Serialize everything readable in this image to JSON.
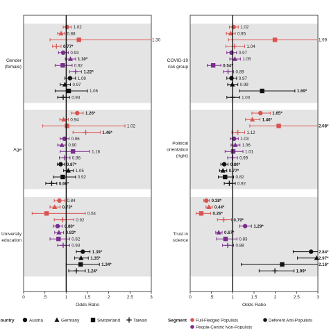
{
  "colors": {
    "full_fledged": "#d9534f",
    "people_centric": "#7b2d8e",
    "deferent": "#111111",
    "band": "#e4e4e4",
    "axis": "#222222"
  },
  "legend": {
    "country_title": "Country",
    "countries": [
      {
        "label": "Austria",
        "marker": "circle"
      },
      {
        "label": "Germany",
        "marker": "triangle"
      },
      {
        "label": "Switzerland",
        "marker": "square"
      },
      {
        "label": "Taiwan",
        "marker": "plus"
      }
    ],
    "segment_title": "Segment",
    "segments": [
      {
        "label": "Full-Fledged Populists",
        "color_key": "full_fledged"
      },
      {
        "label": "People-Centric Non-Populists",
        "color_key": "people_centric"
      },
      {
        "label": "Deferent Anti-Populists",
        "color_key": "deferent"
      }
    ]
  },
  "chart_data": [
    {
      "type": "forest",
      "panel": "left",
      "xlabel": "Odds Ratio",
      "xlim": [
        0,
        3
      ],
      "xticks": [
        0,
        0.5,
        1,
        1.5,
        2,
        2.5,
        3
      ],
      "xtick_labels": [
        "0",
        ".5",
        "1",
        "1.5",
        "2",
        "2.5",
        "3"
      ],
      "reference_line": 1,
      "groups": [
        {
          "label": "Gender\n(female)",
          "rows": [
            {
              "segment": "full_fledged",
              "country": "Austria",
              "or": 1.02,
              "lo": 0.93,
              "hi": 1.12,
              "label": "1.02"
            },
            {
              "segment": "full_fledged",
              "country": "Germany",
              "or": 0.88,
              "lo": 0.8,
              "hi": 0.97,
              "label": "0.88"
            },
            {
              "segment": "full_fledged",
              "country": "Switzerland",
              "or": 1.3,
              "lo": 0.62,
              "hi": 3.0,
              "label": "1.30"
            },
            {
              "segment": "full_fledged",
              "country": "Taiwan",
              "or": 0.77,
              "lo": 0.68,
              "hi": 0.88,
              "label": "0.77*"
            },
            {
              "segment": "people_centric",
              "country": "Austria",
              "or": 0.93,
              "lo": 0.82,
              "hi": 1.05,
              "label": "0.93"
            },
            {
              "segment": "people_centric",
              "country": "Germany",
              "or": 1.1,
              "lo": 0.98,
              "hi": 1.22,
              "label": "1.10*"
            },
            {
              "segment": "people_centric",
              "country": "Switzerland",
              "or": 0.92,
              "lo": 0.74,
              "hi": 1.14,
              "label": "0.92"
            },
            {
              "segment": "people_centric",
              "country": "Taiwan",
              "or": 1.22,
              "lo": 1.08,
              "hi": 1.36,
              "label": "1.22*"
            },
            {
              "segment": "deferent",
              "country": "Austria",
              "or": 1.09,
              "lo": 0.97,
              "hi": 1.22,
              "label": "1.09"
            },
            {
              "segment": "deferent",
              "country": "Germany",
              "or": 0.97,
              "lo": 0.86,
              "hi": 1.1,
              "label": "0.97"
            },
            {
              "segment": "deferent",
              "country": "Switzerland",
              "or": 1.06,
              "lo": 0.74,
              "hi": 1.5,
              "label": "1.06"
            },
            {
              "segment": "deferent",
              "country": "Taiwan",
              "or": 0.93,
              "lo": 0.8,
              "hi": 1.08,
              "label": "0.93"
            }
          ]
        },
        {
          "label": "Age",
          "rows": [
            {
              "segment": "full_fledged",
              "country": "Austria",
              "or": 1.26,
              "lo": 1.12,
              "hi": 1.4,
              "label": "1.26*"
            },
            {
              "segment": "full_fledged",
              "country": "Germany",
              "or": 0.94,
              "lo": 0.85,
              "hi": 1.05,
              "label": "0.94"
            },
            {
              "segment": "full_fledged",
              "country": "Switzerland",
              "or": 1.02,
              "lo": 0.45,
              "hi": 2.38,
              "label": "1.02"
            },
            {
              "segment": "full_fledged",
              "country": "Taiwan",
              "or": 1.46,
              "lo": 1.16,
              "hi": 1.8,
              "label": "1.46*"
            },
            {
              "segment": "people_centric",
              "country": "Austria",
              "or": 0.96,
              "lo": 0.86,
              "hi": 1.07,
              "label": "0.96"
            },
            {
              "segment": "people_centric",
              "country": "Germany",
              "or": 0.9,
              "lo": 0.8,
              "hi": 1.0,
              "label": "0.90"
            },
            {
              "segment": "people_centric",
              "country": "Switzerland",
              "or": 1.16,
              "lo": 0.86,
              "hi": 1.55,
              "label": "1.16"
            },
            {
              "segment": "people_centric",
              "country": "Taiwan",
              "or": 0.96,
              "lo": 0.84,
              "hi": 1.09,
              "label": "0.96"
            },
            {
              "segment": "deferent",
              "country": "Austria",
              "or": 0.87,
              "lo": 0.79,
              "hi": 0.96,
              "label": "0.87*"
            },
            {
              "segment": "deferent",
              "country": "Germany",
              "or": 1.05,
              "lo": 0.94,
              "hi": 1.17,
              "label": "1.05"
            },
            {
              "segment": "deferent",
              "country": "Switzerland",
              "or": 0.92,
              "lo": 0.7,
              "hi": 1.22,
              "label": "0.92"
            },
            {
              "segment": "deferent",
              "country": "Taiwan",
              "or": 0.66,
              "lo": 0.52,
              "hi": 0.78,
              "label": "0.66*"
            }
          ]
        },
        {
          "label": "University\neducation",
          "rows": [
            {
              "segment": "full_fledged",
              "country": "Austria",
              "or": 0.84,
              "lo": 0.72,
              "hi": 0.97,
              "label": "0.84"
            },
            {
              "segment": "full_fledged",
              "country": "Germany",
              "or": 0.73,
              "lo": 0.62,
              "hi": 0.86,
              "label": "0.73*"
            },
            {
              "segment": "full_fledged",
              "country": "Switzerland",
              "or": 0.54,
              "lo": 0.2,
              "hi": 1.45,
              "label": "0.54"
            },
            {
              "segment": "full_fledged",
              "country": "Taiwan",
              "or": 0.92,
              "lo": 0.72,
              "hi": 1.18,
              "label": "0.92"
            },
            {
              "segment": "people_centric",
              "country": "Austria",
              "or": 0.8,
              "lo": 0.7,
              "hi": 0.91,
              "label": "0.80*"
            },
            {
              "segment": "people_centric",
              "country": "Germany",
              "or": 0.83,
              "lo": 0.73,
              "hi": 0.94,
              "label": "0.83*"
            },
            {
              "segment": "people_centric",
              "country": "Switzerland",
              "or": 0.82,
              "lo": 0.62,
              "hi": 1.08,
              "label": "0.82"
            },
            {
              "segment": "people_centric",
              "country": "Taiwan",
              "or": 0.93,
              "lo": 0.8,
              "hi": 1.08,
              "label": "0.93"
            },
            {
              "segment": "deferent",
              "country": "Austria",
              "or": 1.39,
              "lo": 1.24,
              "hi": 1.56,
              "label": "1.39*"
            },
            {
              "segment": "deferent",
              "country": "Germany",
              "or": 1.35,
              "lo": 1.2,
              "hi": 1.52,
              "label": "1.35*"
            },
            {
              "segment": "deferent",
              "country": "Switzerland",
              "or": 1.34,
              "lo": 1.0,
              "hi": 1.78,
              "label": "1.34*"
            },
            {
              "segment": "deferent",
              "country": "Taiwan",
              "or": 1.24,
              "lo": 1.06,
              "hi": 1.45,
              "label": "1.24*"
            }
          ]
        }
      ]
    },
    {
      "type": "forest",
      "panel": "right",
      "xlabel": "Odds Ratio",
      "xlim": [
        0,
        3
      ],
      "xticks": [
        0,
        0.5,
        1,
        1.5,
        2,
        2.5,
        3
      ],
      "xtick_labels": [
        "0",
        ".5",
        "1",
        "1.5",
        "2",
        "2.5",
        "3"
      ],
      "reference_line": 1,
      "groups": [
        {
          "label": "COVID-19\nrisk group",
          "rows": [
            {
              "segment": "full_fledged",
              "country": "Austria",
              "or": 1.02,
              "lo": 0.92,
              "hi": 1.13,
              "label": "1.02"
            },
            {
              "segment": "full_fledged",
              "country": "Germany",
              "or": 0.95,
              "lo": 0.85,
              "hi": 1.06,
              "label": "0.95"
            },
            {
              "segment": "full_fledged",
              "country": "Switzerland",
              "or": 1.99,
              "lo": 0.9,
              "hi": 3.0,
              "label": "1.99"
            },
            {
              "segment": "full_fledged",
              "country": "Taiwan",
              "or": 1.04,
              "lo": 0.84,
              "hi": 1.28,
              "label": "1.04"
            },
            {
              "segment": "people_centric",
              "country": "Austria",
              "or": 0.97,
              "lo": 0.86,
              "hi": 1.09,
              "label": "0.97"
            },
            {
              "segment": "people_centric",
              "country": "Germany",
              "or": 1.05,
              "lo": 0.93,
              "hi": 1.18,
              "label": "1.05"
            },
            {
              "segment": "people_centric",
              "country": "Switzerland",
              "or": 0.54,
              "lo": 0.4,
              "hi": 0.72,
              "label": "0.54*"
            },
            {
              "segment": "people_centric",
              "country": "Taiwan",
              "or": 0.89,
              "lo": 0.78,
              "hi": 1.02,
              "label": "0.89"
            },
            {
              "segment": "deferent",
              "country": "Austria",
              "or": 0.97,
              "lo": 0.86,
              "hi": 1.09,
              "label": "0.97"
            },
            {
              "segment": "deferent",
              "country": "Germany",
              "or": 0.99,
              "lo": 0.88,
              "hi": 1.12,
              "label": "0.99"
            },
            {
              "segment": "deferent",
              "country": "Switzerland",
              "or": 1.69,
              "lo": 1.16,
              "hi": 2.46,
              "label": "1.69*"
            },
            {
              "segment": "deferent",
              "country": "Taiwan",
              "or": 1.0,
              "lo": 0.86,
              "hi": 1.16,
              "label": "1.00"
            }
          ]
        },
        {
          "label": "Political\norientation\n(right)",
          "rows": [
            {
              "segment": "full_fledged",
              "country": "Austria",
              "or": 1.65,
              "lo": 1.45,
              "hi": 1.88,
              "label": "1.65*"
            },
            {
              "segment": "full_fledged",
              "country": "Germany",
              "or": 1.46,
              "lo": 1.3,
              "hi": 1.64,
              "label": "1.46*"
            },
            {
              "segment": "full_fledged",
              "country": "Switzerland",
              "or": 2.08,
              "lo": 1.4,
              "hi": 3.0,
              "label": "2.08*"
            },
            {
              "segment": "full_fledged",
              "country": "Taiwan",
              "or": 1.12,
              "lo": 0.98,
              "hi": 1.28,
              "label": "1.12"
            },
            {
              "segment": "people_centric",
              "country": "Austria",
              "or": 1.03,
              "lo": 0.94,
              "hi": 1.13,
              "label": "1.03"
            },
            {
              "segment": "people_centric",
              "country": "Germany",
              "or": 1.06,
              "lo": 0.96,
              "hi": 1.17,
              "label": "1.06"
            },
            {
              "segment": "people_centric",
              "country": "Switzerland",
              "or": 1.01,
              "lo": 0.82,
              "hi": 1.24,
              "label": "1.01"
            },
            {
              "segment": "people_centric",
              "country": "Taiwan",
              "or": 0.99,
              "lo": 0.88,
              "hi": 1.11,
              "label": "0.99"
            },
            {
              "segment": "deferent",
              "country": "Austria",
              "or": 0.8,
              "lo": 0.72,
              "hi": 0.89,
              "label": "0.80*"
            },
            {
              "segment": "deferent",
              "country": "Germany",
              "or": 0.77,
              "lo": 0.69,
              "hi": 0.86,
              "label": "0.77*"
            },
            {
              "segment": "deferent",
              "country": "Switzerland",
              "or": 0.82,
              "lo": 0.66,
              "hi": 1.02,
              "label": "0.82"
            },
            {
              "segment": "deferent",
              "country": "Taiwan",
              "or": 0.92,
              "lo": 0.8,
              "hi": 1.06,
              "label": "0.92"
            }
          ]
        },
        {
          "label": "Trust in\nscience",
          "rows": [
            {
              "segment": "full_fledged",
              "country": "Austria",
              "or": 0.38,
              "lo": 0.32,
              "hi": 0.45,
              "label": "0.38*"
            },
            {
              "segment": "full_fledged",
              "country": "Germany",
              "or": 0.44,
              "lo": 0.37,
              "hi": 0.52,
              "label": "0.44*"
            },
            {
              "segment": "full_fledged",
              "country": "Switzerland",
              "or": 0.26,
              "lo": 0.14,
              "hi": 0.48,
              "label": "0.26*"
            },
            {
              "segment": "full_fledged",
              "country": "Taiwan",
              "or": 0.79,
              "lo": 0.64,
              "hi": 0.97,
              "label": "0.79*"
            },
            {
              "segment": "people_centric",
              "country": "Austria",
              "or": 1.29,
              "lo": 1.16,
              "hi": 1.44,
              "label": "1.29*"
            },
            {
              "segment": "people_centric",
              "country": "Germany",
              "or": 0.67,
              "lo": 0.6,
              "hi": 0.75,
              "label": "0.67*"
            },
            {
              "segment": "people_centric",
              "country": "Switzerland",
              "or": 0.83,
              "lo": 0.62,
              "hi": 1.1,
              "label": "0.83"
            },
            {
              "segment": "people_centric",
              "country": "Taiwan",
              "or": 0.88,
              "lo": 0.76,
              "hi": 1.02,
              "label": "0.88"
            },
            {
              "segment": "deferent",
              "country": "Austria",
              "or": 2.84,
              "lo": 2.42,
              "hi": 3.0,
              "label": "2.84*"
            },
            {
              "segment": "deferent",
              "country": "Germany",
              "or": 2.97,
              "lo": 2.52,
              "hi": 3.0,
              "label": "2.97*"
            },
            {
              "segment": "deferent",
              "country": "Switzerland",
              "or": 2.16,
              "lo": 1.2,
              "hi": 3.0,
              "label": "2.16*"
            },
            {
              "segment": "deferent",
              "country": "Taiwan",
              "or": 1.99,
              "lo": 1.62,
              "hi": 2.44,
              "label": "1.99*"
            }
          ]
        }
      ]
    }
  ]
}
